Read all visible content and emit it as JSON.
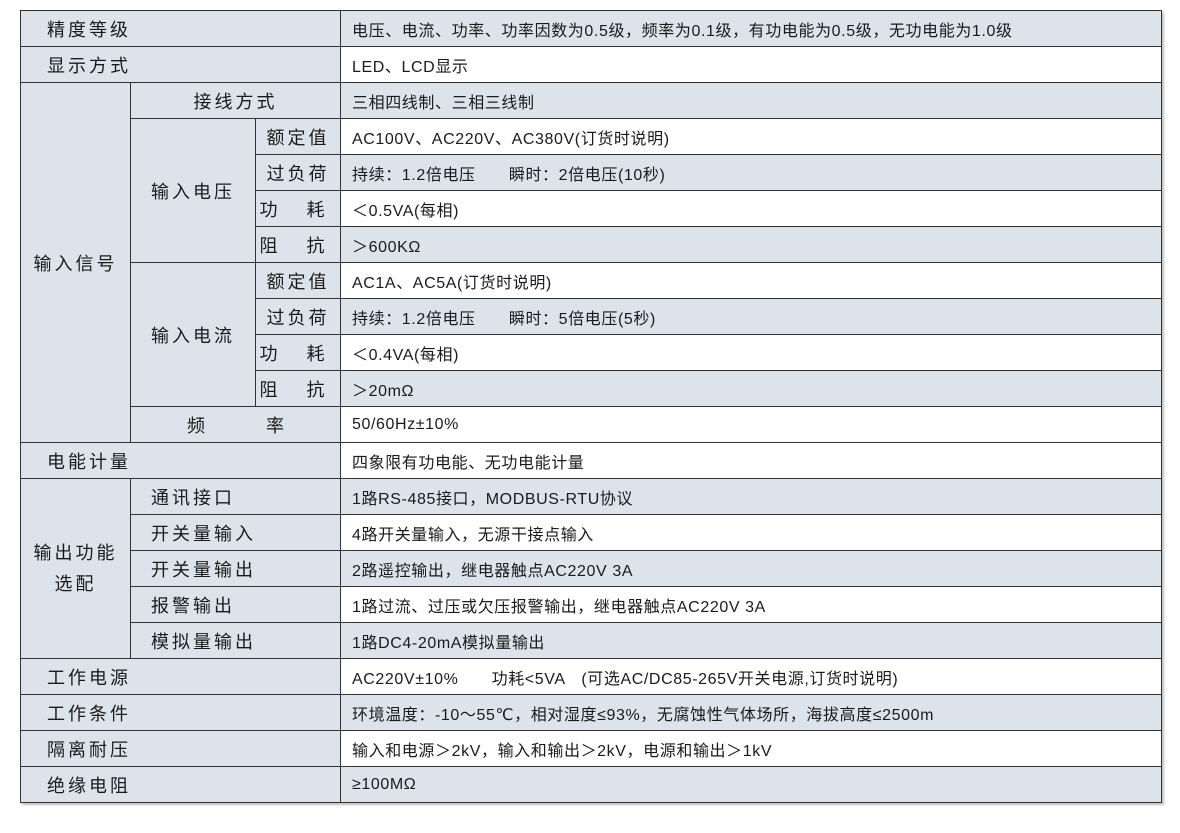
{
  "rows": {
    "accuracy": {
      "label": "精度等级",
      "value": "电压、电流、功率、功率因数为0.5级，频率为0.1级，有功电能为0.5级，无功电能为1.0级"
    },
    "display": {
      "label": "显示方式",
      "value": "LED、LCD显示"
    },
    "input_signal": {
      "label": "输入信号",
      "wiring": {
        "label": "接线方式",
        "value": "三相四线制、三相三线制"
      },
      "voltage": {
        "label": "输入电压",
        "rated": {
          "label": "额定值",
          "value": "AC100V、AC220V、AC380V(订货时说明)"
        },
        "overload": {
          "label": "过负荷",
          "value": "持续：1.2倍电压　　瞬时：2倍电压(10秒)"
        },
        "power": {
          "label": "功 耗",
          "value": "＜0.5VA(每相)"
        },
        "impedance": {
          "label": "阻 抗",
          "value": "＞600KΩ"
        }
      },
      "current": {
        "label": "输入电流",
        "rated": {
          "label": "额定值",
          "value": "AC1A、AC5A(订货时说明)"
        },
        "overload": {
          "label": "过负荷",
          "value": "持续：1.2倍电压　　瞬时：5倍电压(5秒)"
        },
        "power": {
          "label": "功 耗",
          "value": "＜0.4VA(每相)"
        },
        "impedance": {
          "label": "阻 抗",
          "value": "＞20mΩ"
        }
      },
      "frequency": {
        "label": "频 率",
        "value": "50/60Hz±10%"
      }
    },
    "energy": {
      "label": "电能计量",
      "value": "四象限有功电能、无功电能计量"
    },
    "output": {
      "label_line1": "输出功能",
      "label_line2": "选配",
      "comm": {
        "label": "通讯接口",
        "value": "1路RS-485接口，MODBUS-RTU协议"
      },
      "di": {
        "label": "开关量输入",
        "value": "4路开关量输入，无源干接点输入"
      },
      "do": {
        "label": "开关量输出",
        "value": "2路遥控输出，继电器触点AC220V 3A"
      },
      "alarm": {
        "label": "报警输出",
        "value": "1路过流、过压或欠压报警输出，继电器触点AC220V 3A"
      },
      "analog": {
        "label": "模拟量输出",
        "value": "1路DC4-20mA模拟量输出"
      }
    },
    "power_supply": {
      "label": "工作电源",
      "value": "AC220V±10%　　功耗<5VA　(可选AC/DC85-265V开关电源,订货时说明)"
    },
    "conditions": {
      "label": "工作条件",
      "value": "环境温度：-10～55℃，相对湿度≤93%，无腐蚀性气体场所，海拔高度≤2500m"
    },
    "isolation": {
      "label": "隔离耐压",
      "value": "输入和电源＞2kV，输入和输出＞2kV，电源和输出＞1kV"
    },
    "insulation": {
      "label": "绝缘电阻",
      "value": "≥100MΩ"
    }
  },
  "colors": {
    "shade": "#dce3ea",
    "border": "#333333"
  }
}
